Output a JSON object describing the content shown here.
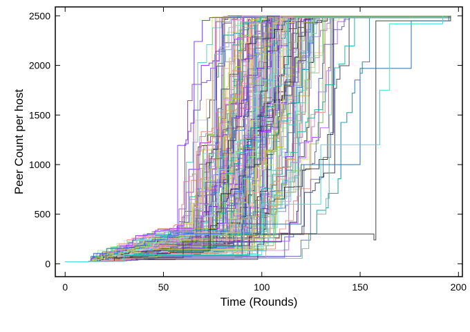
{
  "chart_data": {
    "type": "line",
    "title": "",
    "xlabel": "Time (Rounds)",
    "ylabel": "Peer Count per host",
    "xlim": [
      -5,
      202
    ],
    "ylim": [
      -130,
      2590
    ],
    "x_ticks": [
      0,
      50,
      100,
      150,
      200
    ],
    "y_ticks": [
      0,
      500,
      1000,
      1500,
      2000,
      2500
    ],
    "grid": false,
    "legend": "none",
    "series_count_shown": 400,
    "series_shape": "stepwise cumulative peer count per host; each host starts near 0 at round 0, rises from about 20 peers to the maximum of 2500 peers",
    "y_start": 20,
    "y_max": 2500,
    "completion_round_range": [
      85,
      196
    ],
    "slowest_hosts": [
      {
        "x": [
          0,
          12,
          25,
          60,
          110,
          157,
          158,
          196
        ],
        "y": [
          20,
          25,
          60,
          220,
          300,
          240,
          2450,
          2500
        ]
      },
      {
        "x": [
          0,
          12,
          30,
          90,
          120,
          150,
          175,
          176,
          195
        ],
        "y": [
          20,
          25,
          80,
          400,
          1000,
          1970,
          1970,
          2450,
          2500
        ]
      },
      {
        "x": [
          0,
          12,
          30,
          100,
          130,
          160,
          164,
          165,
          192
        ],
        "y": [
          20,
          25,
          90,
          600,
          1200,
          1750,
          1750,
          2420,
          2500
        ]
      }
    ],
    "palette": [
      "#7B2FD6",
      "#9B30FF",
      "#B87AFF",
      "#C8C820",
      "#A8D848",
      "#50D0C8",
      "#7FFFD4",
      "#FF7F7F",
      "#FFB080",
      "#F0A0F0",
      "#6A5ACD",
      "#00B0A0",
      "#D8D060",
      "#1C1C1C",
      "#4169E1",
      "#E0E070",
      "#20B2AA",
      "#9370DB",
      "#FF9CB0",
      "#8A2BE2",
      "#90EE90",
      "#404040",
      "#BA55D3",
      "#66CDAA"
    ]
  }
}
